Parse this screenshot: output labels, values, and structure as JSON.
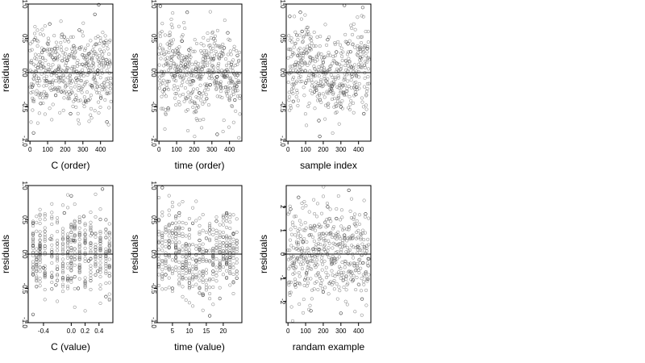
{
  "chart_data": [
    {
      "type": "scatter",
      "xlabel": "C (order)",
      "ylabel": "residuals",
      "xlim": [
        -10,
        470
      ],
      "ylim": [
        -1.0,
        1.0
      ],
      "xticks": [
        0,
        100,
        200,
        300,
        400
      ],
      "yticks": [
        -1.0,
        -0.5,
        0.0,
        0.5,
        1.0
      ],
      "ytick_labels": [
        "-1.0",
        "-0.5",
        "0.0",
        "0.5",
        "1.0"
      ],
      "hline": 0,
      "n_points": 460,
      "point_style": "open circles",
      "series": [
        {
          "values": [
            [
              12,
              -0.21
            ],
            [
              25,
              0.48
            ],
            [
              44,
              0.07
            ],
            [
              61,
              -0.45
            ],
            [
              78,
              0.33
            ],
            [
              95,
              -0.12
            ],
            [
              112,
              0.71
            ],
            [
              128,
              0.22
            ],
            [
              146,
              -0.33
            ],
            [
              160,
              0.05
            ],
            [
              178,
              -0.28
            ],
            [
              195,
              0.52
            ],
            [
              212,
              0.18
            ],
            [
              230,
              -0.6
            ],
            [
              248,
              0.39
            ],
            [
              262,
              -0.08
            ],
            [
              280,
              0.62
            ],
            [
              298,
              0.12
            ],
            [
              315,
              -0.41
            ],
            [
              332,
              0.27
            ],
            [
              350,
              -0.19
            ],
            [
              368,
              0.85
            ],
            [
              384,
              0.03
            ],
            [
              402,
              -0.37
            ],
            [
              420,
              0.44
            ],
            [
              436,
              -0.72
            ],
            [
              452,
              0.15
            ],
            [
              20,
              -0.88
            ],
            [
              140,
              0.35
            ],
            [
              390,
              0.99
            ]
          ]
        }
      ]
    },
    {
      "type": "scatter",
      "xlabel": "time (order)",
      "ylabel": "residuals",
      "xlim": [
        -10,
        470
      ],
      "ylim": [
        -1.0,
        1.0
      ],
      "xticks": [
        0,
        100,
        200,
        300,
        400
      ],
      "yticks": [
        -1.0,
        -0.5,
        0.0,
        0.5,
        1.0
      ],
      "ytick_labels": [
        "-1.0",
        "-0.5",
        "0.0",
        "0.5",
        "1.0"
      ],
      "hline": 0,
      "n_points": 460,
      "point_style": "open circles",
      "series": [
        {
          "values": [
            [
              8,
              0.97
            ],
            [
              30,
              -0.25
            ],
            [
              52,
              -0.52
            ],
            [
              70,
              0.18
            ],
            [
              90,
              -0.05
            ],
            [
              110,
              0.28
            ],
            [
              130,
              0.46
            ],
            [
              150,
              0.12
            ],
            [
              170,
              0.33
            ],
            [
              190,
              -0.12
            ],
            [
              210,
              0.05
            ],
            [
              230,
              -0.3
            ],
            [
              250,
              0.09
            ],
            [
              270,
              -0.38
            ],
            [
              290,
              -0.18
            ],
            [
              310,
              0.2
            ],
            [
              330,
              -0.06
            ],
            [
              350,
              -0.22
            ],
            [
              370,
              0.36
            ],
            [
              390,
              0.58
            ],
            [
              410,
              0.12
            ],
            [
              430,
              -0.4
            ],
            [
              445,
              0.25
            ],
            [
              160,
              0.88
            ],
            [
              330,
              -0.9
            ]
          ]
        }
      ]
    },
    {
      "type": "scatter",
      "xlabel": "sample index",
      "ylabel": "residuals",
      "xlim": [
        -10,
        470
      ],
      "ylim": [
        -1.0,
        1.0
      ],
      "xticks": [
        0,
        100,
        200,
        300,
        400
      ],
      "yticks": [
        -1.0,
        -0.5,
        0.0,
        0.5,
        1.0
      ],
      "ytick_labels": [
        "-1.0",
        "-0.5",
        "0.0",
        "0.5",
        "1.0"
      ],
      "hline": 0,
      "n_points": 460,
      "point_style": "open circles",
      "series": [
        {
          "values": [
            [
              10,
              0.82
            ],
            [
              30,
              -0.42
            ],
            [
              55,
              0.25
            ],
            [
              80,
              0.6
            ],
            [
              100,
              -0.15
            ],
            [
              125,
              0.35
            ],
            [
              150,
              -0.28
            ],
            [
              175,
              -0.7
            ],
            [
              200,
              0.15
            ],
            [
              225,
              0.48
            ],
            [
              250,
              -0.2
            ],
            [
              275,
              0.3
            ],
            [
              300,
              -0.5
            ],
            [
              320,
              0.98
            ],
            [
              340,
              0.42
            ],
            [
              360,
              0.08
            ],
            [
              385,
              -0.32
            ],
            [
              410,
              0.22
            ],
            [
              430,
              -0.6
            ],
            [
              450,
              0.35
            ],
            [
              180,
              -0.93
            ],
            [
              70,
              0.88
            ]
          ]
        }
      ]
    },
    {
      "type": "scatter",
      "xlabel": "C (value)",
      "ylabel": "residuals",
      "xlim": [
        -0.62,
        0.6
      ],
      "ylim": [
        -1.0,
        1.0
      ],
      "xticks": [
        -0.4,
        0.0,
        0.2,
        0.4
      ],
      "xtick_labels": [
        "-0.4",
        "0.0",
        "0.2",
        "0.4"
      ],
      "yticks": [
        -1.0,
        -0.5,
        0.0,
        0.5,
        1.0
      ],
      "ytick_labels": [
        "-1.0",
        "-0.5",
        "0.0",
        "0.5",
        "1.0"
      ],
      "hline": 0,
      "n_points": 460,
      "point_style": "open circles",
      "series": [
        {
          "values": [
            [
              -0.55,
              0.45
            ],
            [
              -0.55,
              -0.3
            ],
            [
              -0.55,
              -0.88
            ],
            [
              -0.45,
              0.12
            ],
            [
              -0.4,
              -0.2
            ],
            [
              -0.3,
              0.22
            ],
            [
              -0.22,
              -0.45
            ],
            [
              -0.1,
              0.6
            ],
            [
              -0.05,
              0.03
            ],
            [
              0.0,
              -0.35
            ],
            [
              0.0,
              0.85
            ],
            [
              0.03,
              0.2
            ],
            [
              0.1,
              -0.5
            ],
            [
              0.18,
              0.55
            ],
            [
              0.25,
              -0.1
            ],
            [
              0.3,
              0.3
            ],
            [
              0.38,
              -0.25
            ],
            [
              0.45,
              0.95
            ],
            [
              0.5,
              -0.62
            ],
            [
              0.55,
              0.05
            ]
          ]
        }
      ]
    },
    {
      "type": "scatter",
      "xlabel": "time (value)",
      "ylabel": "residuals",
      "xlim": [
        0.5,
        25.5
      ],
      "ylim": [
        -1.0,
        1.0
      ],
      "xticks": [
        5,
        10,
        15,
        20
      ],
      "yticks": [
        -1.0,
        -0.5,
        0.0,
        0.5,
        1.0
      ],
      "ytick_labels": [
        "-1.0",
        "-0.5",
        "0.0",
        "0.5",
        "1.0"
      ],
      "hline": 0,
      "n_points": 460,
      "point_style": "open circles",
      "series": [
        {
          "values": [
            [
              1,
              0.5
            ],
            [
              2,
              0.97
            ],
            [
              3,
              -0.3
            ],
            [
              4,
              0.1
            ],
            [
              5,
              -0.5
            ],
            [
              6,
              0.3
            ],
            [
              7,
              0.6
            ],
            [
              8,
              -0.2
            ],
            [
              9,
              0.15
            ],
            [
              10,
              -0.42
            ],
            [
              11,
              0.45
            ],
            [
              12,
              -0.1
            ],
            [
              13,
              0.2
            ],
            [
              14,
              -0.6
            ],
            [
              15,
              0.05
            ],
            [
              16,
              0.35
            ],
            [
              17,
              -0.25
            ],
            [
              18,
              0.48
            ],
            [
              19,
              -0.15
            ],
            [
              20,
              0.25
            ],
            [
              21,
              0.6
            ],
            [
              22,
              -0.05
            ],
            [
              23,
              0.3
            ],
            [
              24,
              -0.35
            ],
            [
              16,
              -0.9
            ]
          ]
        }
      ]
    },
    {
      "type": "scatter",
      "xlabel": "randam example",
      "ylabel": "residuals",
      "xlim": [
        -10,
        470
      ],
      "ylim": [
        -2.9,
        2.9
      ],
      "xticks": [
        0,
        100,
        200,
        300,
        400
      ],
      "yticks": [
        -2,
        -1,
        0,
        1,
        2
      ],
      "ytick_labels": [
        "-2",
        "-1",
        "0",
        "1",
        "2"
      ],
      "hline": 0,
      "n_points": 460,
      "point_style": "open circles",
      "series": [
        {
          "values": [
            [
              15,
              1.9
            ],
            [
              40,
              -1.3
            ],
            [
              60,
              2.4
            ],
            [
              85,
              0.5
            ],
            [
              105,
              -0.8
            ],
            [
              130,
              -2.4
            ],
            [
              150,
              1.2
            ],
            [
              175,
              0.2
            ],
            [
              200,
              -1.6
            ],
            [
              225,
              2.0
            ],
            [
              250,
              -0.4
            ],
            [
              275,
              1.5
            ],
            [
              300,
              -2.5
            ],
            [
              320,
              0.8
            ],
            [
              345,
              2.7
            ],
            [
              370,
              -1.1
            ],
            [
              395,
              0.3
            ],
            [
              420,
              -1.9
            ],
            [
              440,
              1.7
            ],
            [
              455,
              -0.2
            ]
          ]
        }
      ]
    }
  ]
}
